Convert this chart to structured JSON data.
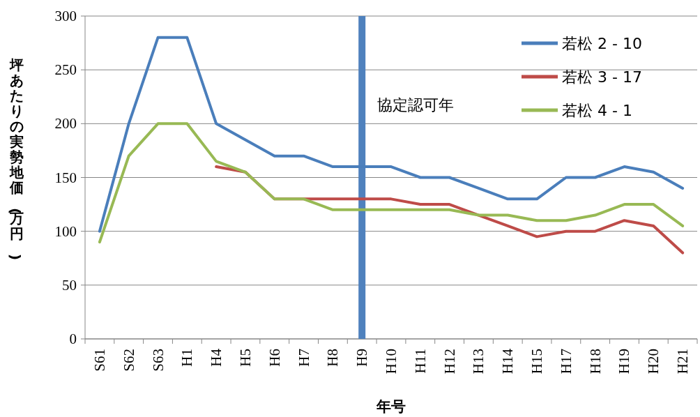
{
  "chart_data": {
    "type": "line",
    "xlabel": "年号",
    "ylabel": "坪あたりの実勢地価(万円)",
    "categories": [
      "S61",
      "S62",
      "S63",
      "H1",
      "H4",
      "H5",
      "H6",
      "H7",
      "H8",
      "H9",
      "H10",
      "H11",
      "H12",
      "H13",
      "H14",
      "H15",
      "H17",
      "H18",
      "H19",
      "H20",
      "H21"
    ],
    "series": [
      {
        "name": "若松 2 - 10",
        "color": "#4a7ebb",
        "values": [
          100,
          200,
          280,
          280,
          200,
          185,
          170,
          170,
          160,
          160,
          160,
          150,
          150,
          140,
          130,
          130,
          150,
          150,
          160,
          155,
          140
        ]
      },
      {
        "name": "若松 3 - 17",
        "color": "#be4b48",
        "values": [
          null,
          null,
          null,
          null,
          160,
          155,
          130,
          130,
          130,
          130,
          130,
          125,
          125,
          115,
          105,
          95,
          100,
          100,
          110,
          105,
          80
        ]
      },
      {
        "name": "若松 4 - 1",
        "color": "#98b954",
        "values": [
          90,
          170,
          200,
          200,
          165,
          155,
          130,
          130,
          120,
          120,
          120,
          120,
          120,
          115,
          115,
          110,
          110,
          115,
          125,
          125,
          105
        ]
      }
    ],
    "ylim": [
      0,
      300
    ],
    "yticks": [
      0,
      50,
      100,
      150,
      200,
      250,
      300
    ],
    "grid": "y",
    "legend": "top right",
    "ref_lines": [
      {
        "axis": "x",
        "value": "H9",
        "label": "協定認可年",
        "color": "#4f81bd"
      }
    ]
  }
}
